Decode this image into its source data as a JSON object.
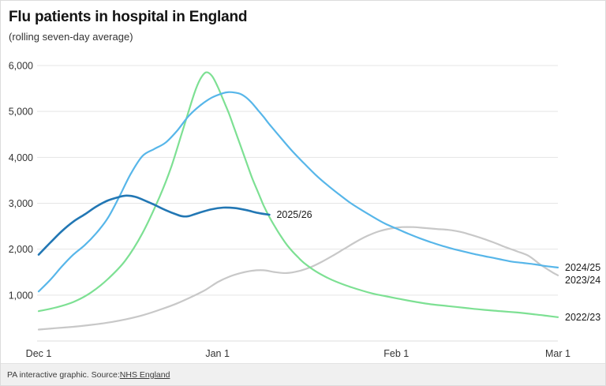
{
  "header": {
    "title": "Flu patients in hospital in England",
    "subtitle": "(rolling seven-day average)"
  },
  "footer": {
    "credit": "PA interactive graphic. Source: ",
    "source_link": "NHS England"
  },
  "chart_data": {
    "type": "line",
    "title": "Flu patients in hospital in England",
    "subtitle": "(rolling seven-day average)",
    "x_unit": "days since Dec 1",
    "x_domain": [
      0,
      90
    ],
    "y_domain": [
      0,
      6000
    ],
    "grid": "horizontal",
    "legend_position": "line-end-labels",
    "style": {
      "grid_color": "#e5e5e5",
      "baseline_color": "#dedede",
      "axis_text_color": "#333333",
      "series_label_color": "#1a1a1a"
    },
    "x_ticks": [
      {
        "day": 0,
        "label": "Dec 1"
      },
      {
        "day": 31,
        "label": "Jan 1"
      },
      {
        "day": 62,
        "label": "Feb 1"
      },
      {
        "day": 90,
        "label": "Mar 1"
      }
    ],
    "y_ticks": [
      {
        "value": 1000,
        "label": "1,000"
      },
      {
        "value": 2000,
        "label": "2,000"
      },
      {
        "value": 3000,
        "label": "3,000"
      },
      {
        "value": 4000,
        "label": "4,000"
      },
      {
        "value": 5000,
        "label": "5,000"
      },
      {
        "value": 6000,
        "label": "6,000"
      }
    ],
    "series": [
      {
        "name": "2023/24",
        "label": "2023/24",
        "color": "#c8c8c8",
        "width": 2.2,
        "label_dx": 9,
        "label_dy": 10,
        "points": [
          [
            0,
            250
          ],
          [
            3,
            280
          ],
          [
            6,
            310
          ],
          [
            9,
            350
          ],
          [
            12,
            400
          ],
          [
            15,
            470
          ],
          [
            18,
            560
          ],
          [
            21,
            680
          ],
          [
            24,
            820
          ],
          [
            27,
            990
          ],
          [
            29,
            1120
          ],
          [
            31,
            1280
          ],
          [
            33,
            1400
          ],
          [
            35,
            1480
          ],
          [
            37,
            1530
          ],
          [
            39,
            1540
          ],
          [
            41,
            1500
          ],
          [
            43,
            1480
          ],
          [
            45,
            1520
          ],
          [
            47,
            1600
          ],
          [
            49,
            1720
          ],
          [
            51,
            1860
          ],
          [
            53,
            2010
          ],
          [
            55,
            2160
          ],
          [
            57,
            2290
          ],
          [
            59,
            2390
          ],
          [
            61,
            2450
          ],
          [
            63,
            2480
          ],
          [
            65,
            2480
          ],
          [
            67,
            2460
          ],
          [
            69,
            2440
          ],
          [
            71,
            2420
          ],
          [
            73,
            2380
          ],
          [
            75,
            2310
          ],
          [
            77,
            2230
          ],
          [
            79,
            2140
          ],
          [
            81,
            2040
          ],
          [
            83,
            1950
          ],
          [
            85,
            1850
          ],
          [
            87,
            1660
          ],
          [
            89,
            1500
          ],
          [
            90,
            1430
          ]
        ]
      },
      {
        "name": "2022/23",
        "label": "2022/23",
        "color": "#7de093",
        "width": 2.2,
        "label_dx": 9,
        "label_dy": 4,
        "points": [
          [
            0,
            650
          ],
          [
            3,
            730
          ],
          [
            6,
            850
          ],
          [
            9,
            1050
          ],
          [
            12,
            1350
          ],
          [
            15,
            1750
          ],
          [
            18,
            2350
          ],
          [
            21,
            3150
          ],
          [
            23,
            3800
          ],
          [
            25,
            4600
          ],
          [
            27,
            5400
          ],
          [
            28,
            5700
          ],
          [
            29,
            5850
          ],
          [
            30,
            5780
          ],
          [
            31,
            5550
          ],
          [
            32,
            5250
          ],
          [
            33,
            4950
          ],
          [
            34,
            4600
          ],
          [
            35,
            4250
          ],
          [
            36,
            3900
          ],
          [
            37,
            3550
          ],
          [
            38,
            3250
          ],
          [
            39,
            2950
          ],
          [
            40,
            2700
          ],
          [
            41,
            2480
          ],
          [
            42,
            2280
          ],
          [
            43,
            2100
          ],
          [
            44,
            1950
          ],
          [
            45,
            1820
          ],
          [
            46,
            1700
          ],
          [
            48,
            1520
          ],
          [
            50,
            1380
          ],
          [
            52,
            1270
          ],
          [
            54,
            1180
          ],
          [
            56,
            1100
          ],
          [
            58,
            1030
          ],
          [
            60,
            980
          ],
          [
            62,
            930
          ],
          [
            65,
            860
          ],
          [
            68,
            800
          ],
          [
            71,
            760
          ],
          [
            74,
            720
          ],
          [
            77,
            680
          ],
          [
            80,
            650
          ],
          [
            83,
            620
          ],
          [
            86,
            580
          ],
          [
            88,
            550
          ],
          [
            90,
            520
          ]
        ]
      },
      {
        "name": "2024/25",
        "label": "2024/25",
        "color": "#57b6e9",
        "width": 2.2,
        "label_dx": 9,
        "label_dy": 4,
        "points": [
          [
            0,
            1080
          ],
          [
            2,
            1330
          ],
          [
            4,
            1620
          ],
          [
            6,
            1880
          ],
          [
            8,
            2090
          ],
          [
            10,
            2350
          ],
          [
            12,
            2680
          ],
          [
            14,
            3150
          ],
          [
            16,
            3650
          ],
          [
            18,
            4030
          ],
          [
            20,
            4180
          ],
          [
            22,
            4320
          ],
          [
            24,
            4580
          ],
          [
            26,
            4900
          ],
          [
            28,
            5130
          ],
          [
            30,
            5300
          ],
          [
            32,
            5400
          ],
          [
            33,
            5420
          ],
          [
            34,
            5410
          ],
          [
            35,
            5380
          ],
          [
            36,
            5300
          ],
          [
            37,
            5180
          ],
          [
            38,
            5030
          ],
          [
            39,
            4880
          ],
          [
            40,
            4720
          ],
          [
            42,
            4420
          ],
          [
            44,
            4130
          ],
          [
            46,
            3870
          ],
          [
            48,
            3620
          ],
          [
            50,
            3400
          ],
          [
            52,
            3200
          ],
          [
            54,
            3010
          ],
          [
            56,
            2850
          ],
          [
            58,
            2700
          ],
          [
            60,
            2560
          ],
          [
            62,
            2450
          ],
          [
            64,
            2340
          ],
          [
            66,
            2240
          ],
          [
            68,
            2150
          ],
          [
            70,
            2070
          ],
          [
            72,
            2000
          ],
          [
            74,
            1940
          ],
          [
            76,
            1880
          ],
          [
            78,
            1830
          ],
          [
            80,
            1780
          ],
          [
            82,
            1730
          ],
          [
            84,
            1700
          ],
          [
            86,
            1670
          ],
          [
            88,
            1630
          ],
          [
            90,
            1600
          ]
        ]
      },
      {
        "name": "2025/26",
        "label": "2025/26",
        "color": "#2277b4",
        "width": 2.6,
        "label_dx": 9,
        "label_dy": 4,
        "points": [
          [
            0,
            1880
          ],
          [
            2,
            2140
          ],
          [
            4,
            2390
          ],
          [
            6,
            2600
          ],
          [
            8,
            2760
          ],
          [
            10,
            2930
          ],
          [
            12,
            3060
          ],
          [
            14,
            3140
          ],
          [
            15,
            3165
          ],
          [
            16,
            3160
          ],
          [
            17,
            3130
          ],
          [
            18,
            3080
          ],
          [
            20,
            2970
          ],
          [
            22,
            2850
          ],
          [
            24,
            2750
          ],
          [
            25,
            2715
          ],
          [
            26,
            2720
          ],
          [
            27,
            2760
          ],
          [
            28,
            2800
          ],
          [
            30,
            2870
          ],
          [
            32,
            2905
          ],
          [
            34,
            2895
          ],
          [
            36,
            2850
          ],
          [
            38,
            2790
          ],
          [
            40,
            2750
          ]
        ]
      }
    ]
  }
}
